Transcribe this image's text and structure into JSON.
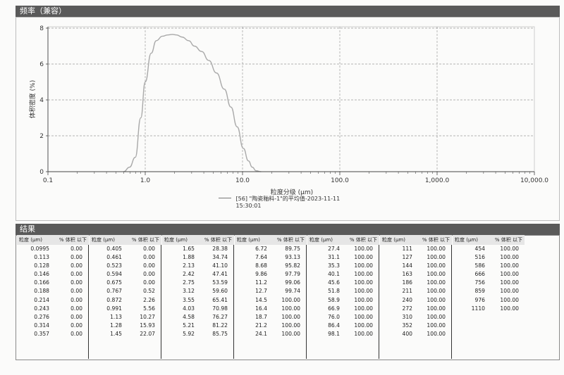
{
  "chart_header": "频率（兼容）",
  "results_header": "结果",
  "colors": {
    "curve": "#a9a9a9",
    "grid_major": "#9c9c9c",
    "header_bg": "#5a5a5a"
  },
  "chart_data": {
    "type": "area",
    "xscale": "log",
    "xlim": [
      0.1,
      10000
    ],
    "ylim": [
      0,
      8
    ],
    "xticks": [
      "0.1",
      "1.0",
      "10.0",
      "100.0",
      "1,000.0",
      "10,000.0"
    ],
    "yticks": [
      "0",
      "2",
      "4",
      "6",
      "8"
    ],
    "xlabel": "粒度分级 (μm)",
    "ylabel": "体积密度 (%)",
    "grid": true,
    "legend_position": "bottom-center",
    "series": [
      {
        "name": "[56] \"陶瓷釉料-1\"的平均值-2023-11-11 15:30:01",
        "x": [
          0.6,
          0.69,
          0.79,
          0.9,
          1.0,
          1.15,
          1.3,
          1.5,
          1.7,
          1.9,
          2.1,
          2.4,
          2.8,
          3.2,
          3.8,
          4.5,
          5.4,
          6.5,
          7.6,
          8.8,
          10.2,
          11.5,
          12.6,
          13.8,
          15.5
        ],
        "y": [
          0,
          0.25,
          0.8,
          3.0,
          5.0,
          6.6,
          7.3,
          7.55,
          7.62,
          7.65,
          7.62,
          7.5,
          7.3,
          7.0,
          6.7,
          6.2,
          5.5,
          4.6,
          3.6,
          2.5,
          1.3,
          0.6,
          0.25,
          0.05,
          0
        ]
      }
    ]
  },
  "results": {
    "col_header_size": "粒度 (μm)",
    "col_header_vol": "% 体积 以下",
    "columns": [
      [
        [
          "0.0995",
          "0.00"
        ],
        [
          "0.113",
          "0.00"
        ],
        [
          "0.128",
          "0.00"
        ],
        [
          "0.146",
          "0.00"
        ],
        [
          "0.166",
          "0.00"
        ],
        [
          "0.188",
          "0.00"
        ],
        [
          "0.214",
          "0.00"
        ],
        [
          "0.243",
          "0.00"
        ],
        [
          "0.276",
          "0.00"
        ],
        [
          "0.314",
          "0.00"
        ],
        [
          "0.357",
          "0.00"
        ]
      ],
      [
        [
          "0.405",
          "0.00"
        ],
        [
          "0.461",
          "0.00"
        ],
        [
          "0.523",
          "0.00"
        ],
        [
          "0.594",
          "0.00"
        ],
        [
          "0.675",
          "0.00"
        ],
        [
          "0.767",
          "0.52"
        ],
        [
          "0.872",
          "2.26"
        ],
        [
          "0.991",
          "5.56"
        ],
        [
          "1.13",
          "10.27"
        ],
        [
          "1.28",
          "15.93"
        ],
        [
          "1.45",
          "22.07"
        ]
      ],
      [
        [
          "1.65",
          "28.38"
        ],
        [
          "1.88",
          "34.74"
        ],
        [
          "2.13",
          "41.10"
        ],
        [
          "2.42",
          "47.41"
        ],
        [
          "2.75",
          "53.59"
        ],
        [
          "3.12",
          "59.60"
        ],
        [
          "3.55",
          "65.41"
        ],
        [
          "4.03",
          "70.98"
        ],
        [
          "4.58",
          "76.27"
        ],
        [
          "5.21",
          "81.22"
        ],
        [
          "5.92",
          "85.75"
        ]
      ],
      [
        [
          "6.72",
          "89.75"
        ],
        [
          "7.64",
          "93.13"
        ],
        [
          "8.68",
          "95.82"
        ],
        [
          "9.86",
          "97.79"
        ],
        [
          "11.2",
          "99.06"
        ],
        [
          "12.7",
          "99.74"
        ],
        [
          "14.5",
          "100.00"
        ],
        [
          "16.4",
          "100.00"
        ],
        [
          "18.7",
          "100.00"
        ],
        [
          "21.2",
          "100.00"
        ],
        [
          "24.1",
          "100.00"
        ]
      ],
      [
        [
          "27.4",
          "100.00"
        ],
        [
          "31.1",
          "100.00"
        ],
        [
          "35.3",
          "100.00"
        ],
        [
          "40.1",
          "100.00"
        ],
        [
          "45.6",
          "100.00"
        ],
        [
          "51.8",
          "100.00"
        ],
        [
          "58.9",
          "100.00"
        ],
        [
          "66.9",
          "100.00"
        ],
        [
          "76.0",
          "100.00"
        ],
        [
          "86.4",
          "100.00"
        ],
        [
          "98.1",
          "100.00"
        ]
      ],
      [
        [
          "111",
          "100.00"
        ],
        [
          "127",
          "100.00"
        ],
        [
          "144",
          "100.00"
        ],
        [
          "163",
          "100.00"
        ],
        [
          "186",
          "100.00"
        ],
        [
          "211",
          "100.00"
        ],
        [
          "240",
          "100.00"
        ],
        [
          "272",
          "100.00"
        ],
        [
          "310",
          "100.00"
        ],
        [
          "352",
          "100.00"
        ],
        [
          "400",
          "100.00"
        ]
      ],
      [
        [
          "454",
          "100.00"
        ],
        [
          "516",
          "100.00"
        ],
        [
          "586",
          "100.00"
        ],
        [
          "666",
          "100.00"
        ],
        [
          "756",
          "100.00"
        ],
        [
          "859",
          "100.00"
        ],
        [
          "976",
          "100.00"
        ],
        [
          "1110",
          "100.00"
        ]
      ]
    ]
  }
}
